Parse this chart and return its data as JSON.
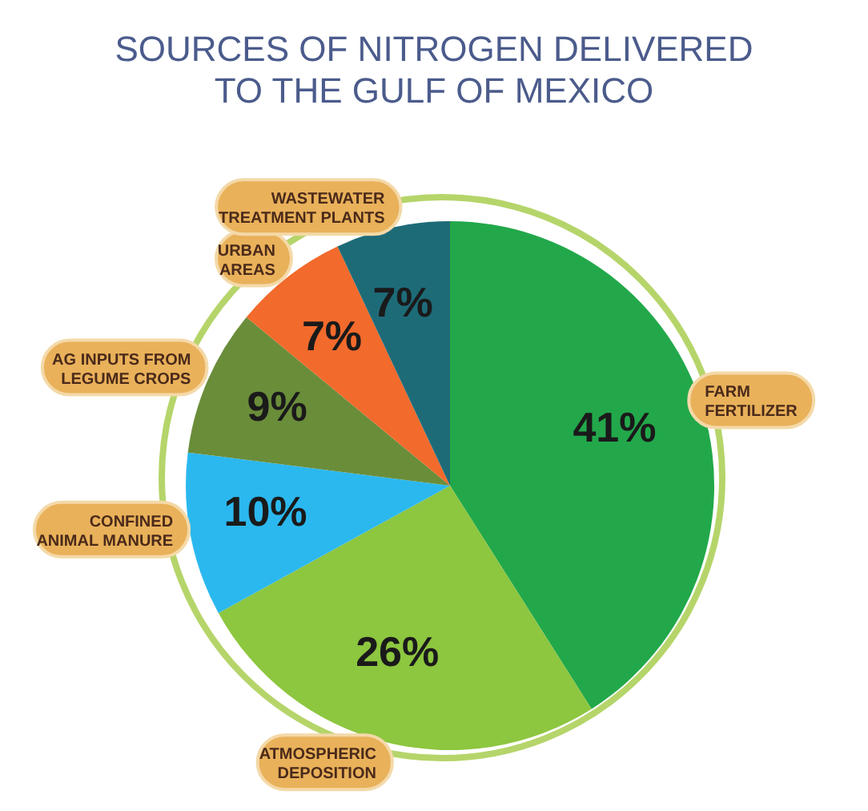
{
  "chart_data": {
    "type": "pie",
    "title": "SOURCES OF NITROGEN DELIVERED\nTO THE GULF OF MEXICO",
    "categories": [
      "FARM\nFERTILIZER",
      "ATMOSPHERIC\nDEPOSITION",
      "CONFINED\nANIMAL MANURE",
      "AG INPUTS FROM\nLEGUME CROPS",
      "URBAN\nAREAS",
      "WASTEWATER\nTREATMENT PLANTS"
    ],
    "values": [
      41,
      26,
      10,
      9,
      7,
      7
    ],
    "colors": [
      "#22a84a",
      "#8dc63f",
      "#2bb8ef",
      "#6a8d3a",
      "#f26a2c",
      "#1e6b78"
    ],
    "value_labels": [
      "41%",
      "26%",
      "10%",
      "9%",
      "7%",
      "7%"
    ]
  }
}
